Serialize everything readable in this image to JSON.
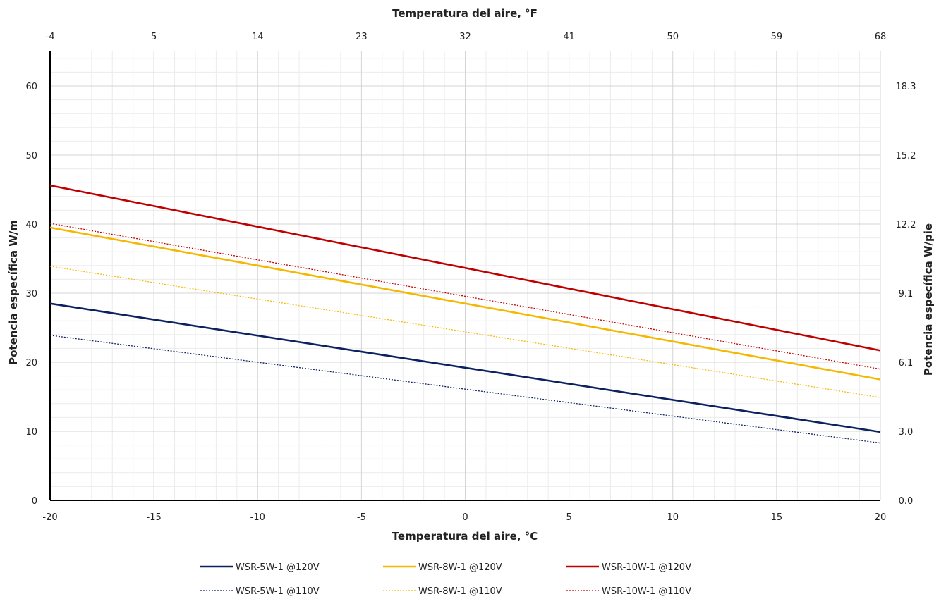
{
  "chart_data": {
    "type": "line",
    "x": [
      -20,
      20
    ],
    "xlabel": "Temperatura del aire, °C",
    "x2label": "Temperatura del aire, °F",
    "ylabel": "Potencia específica W/m",
    "y2label": "Potencia específica W/pie",
    "xlim": [
      -20,
      20
    ],
    "ylim": [
      0,
      65
    ],
    "xticks": [
      -20,
      -15,
      -10,
      -5,
      0,
      5,
      10,
      15,
      20
    ],
    "x2ticks": [
      "-4",
      "5",
      "14",
      "23",
      "32",
      "41",
      "50",
      "59",
      "68"
    ],
    "yticks": [
      0,
      10,
      20,
      30,
      40,
      50,
      60
    ],
    "y2ticks": [
      "0.0",
      "3.0",
      "6.1",
      "9.1",
      "12.2",
      "15.2",
      "18.3"
    ],
    "grid": true,
    "legend_position": "bottom",
    "series": [
      {
        "name": "WSR-5W-1 @120V",
        "values": [
          28.5,
          9.9
        ],
        "color": "#0d2160",
        "style": "solid"
      },
      {
        "name": "WSR-8W-1 @120V",
        "values": [
          39.5,
          17.5
        ],
        "color": "#f5b800",
        "style": "solid"
      },
      {
        "name": "WSR-10W-1 @120V",
        "values": [
          45.6,
          21.7
        ],
        "color": "#c00000",
        "style": "solid"
      },
      {
        "name": "WSR-5W-1 @110V",
        "values": [
          23.9,
          8.3
        ],
        "color": "#0d2160",
        "style": "dotted"
      },
      {
        "name": "WSR-8W-1 @110V",
        "values": [
          33.9,
          14.9
        ],
        "color": "#f5b800",
        "style": "dotted"
      },
      {
        "name": "WSR-10W-1 @110V",
        "values": [
          40.1,
          19.0
        ],
        "color": "#c00000",
        "style": "dotted"
      }
    ]
  }
}
